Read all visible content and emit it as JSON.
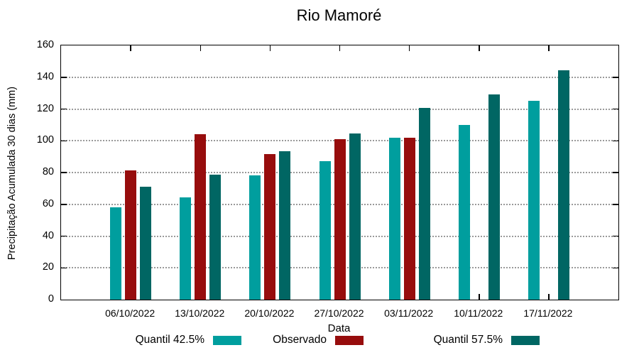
{
  "title": "Rio Mamoré",
  "colors": {
    "quantil_425": "#009E9E",
    "observado": "#970D0D",
    "quantil_575": "#006663",
    "grid": "#9A9A9A",
    "border": "#000000"
  },
  "legend": {
    "position": "bottom",
    "items": [
      {
        "label": "Quantil 42.5%",
        "color": "#009E9E"
      },
      {
        "label": "Observado",
        "color": "#970D0D"
      },
      {
        "label": "Quantil 57.5%",
        "color": "#006663"
      }
    ]
  },
  "chart_data": {
    "type": "bar",
    "title": "Rio Mamoré",
    "xlabel": "Data",
    "ylabel": "Precipitação Acumulada 30 dias (mm)",
    "categories": [
      "06/10/2022",
      "13/10/2022",
      "20/10/2022",
      "27/10/2022",
      "03/11/2022",
      "10/11/2022",
      "17/11/2022"
    ],
    "series": [
      {
        "name": "Quantil 42.5%",
        "color": "#009E9E",
        "values": [
          58,
          64.5,
          78,
          87,
          102,
          110,
          125
        ]
      },
      {
        "name": "Observado",
        "color": "#970D0D",
        "values": [
          81.5,
          104,
          91.5,
          101,
          102,
          null,
          null
        ]
      },
      {
        "name": "Quantil 57.5%",
        "color": "#006663",
        "values": [
          71,
          78.5,
          93.5,
          104.5,
          120.5,
          129,
          144.5
        ]
      }
    ],
    "ylim": [
      0,
      160
    ],
    "ytick_step": 20,
    "grid": true,
    "legend_position": "bottom"
  }
}
